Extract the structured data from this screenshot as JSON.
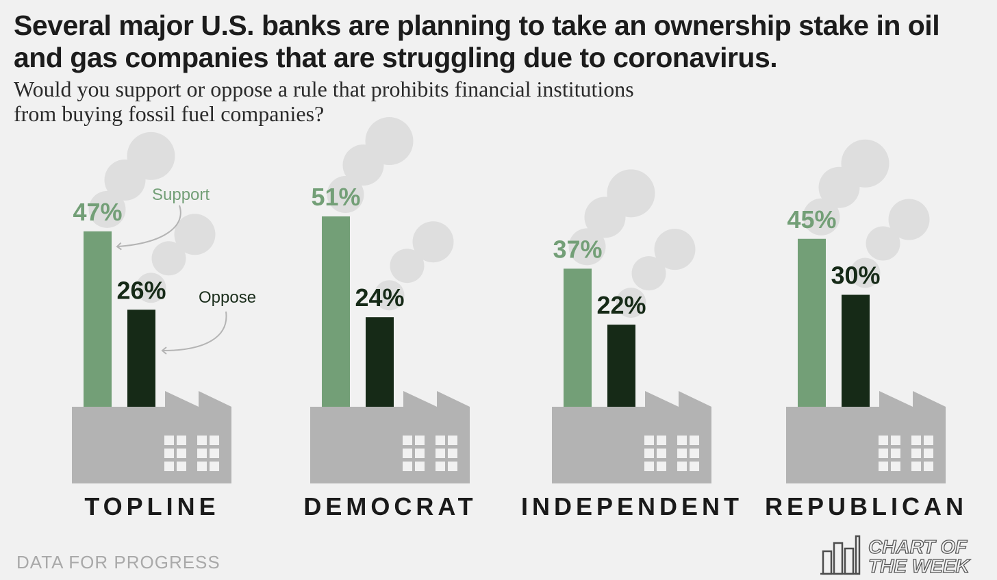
{
  "title": "Several major U.S. banks are planning to take an ownership stake in oil and gas companies that are struggling due to coronavirus.",
  "subtitle": "Would you support or oppose a rule that prohibits financial institutions from buying fossil fuel companies?",
  "source": "DATA FOR PROGRESS",
  "badge": {
    "line1": "CHART OF",
    "line2": "THE WEEK",
    "icon": "bar-chart-icon"
  },
  "annotations": {
    "support": "Support",
    "oppose": "Oppose"
  },
  "colors": {
    "support": "#739f77",
    "oppose": "#162a17",
    "factory": "#b3b3b3",
    "smoke": "#dedede",
    "window": "#f1f1f1"
  },
  "chart_data": {
    "type": "bar",
    "categories": [
      "TOPLINE",
      "DEMOCRAT",
      "INDEPENDENT",
      "REPUBLICAN"
    ],
    "series": [
      {
        "name": "Support",
        "values": [
          47,
          51,
          37,
          45
        ],
        "labels": [
          "47%",
          "51%",
          "37%",
          "45%"
        ]
      },
      {
        "name": "Oppose",
        "values": [
          26,
          24,
          22,
          30
        ],
        "labels": [
          "26%",
          "24%",
          "22%",
          "30%"
        ]
      }
    ],
    "unit": "%"
  }
}
